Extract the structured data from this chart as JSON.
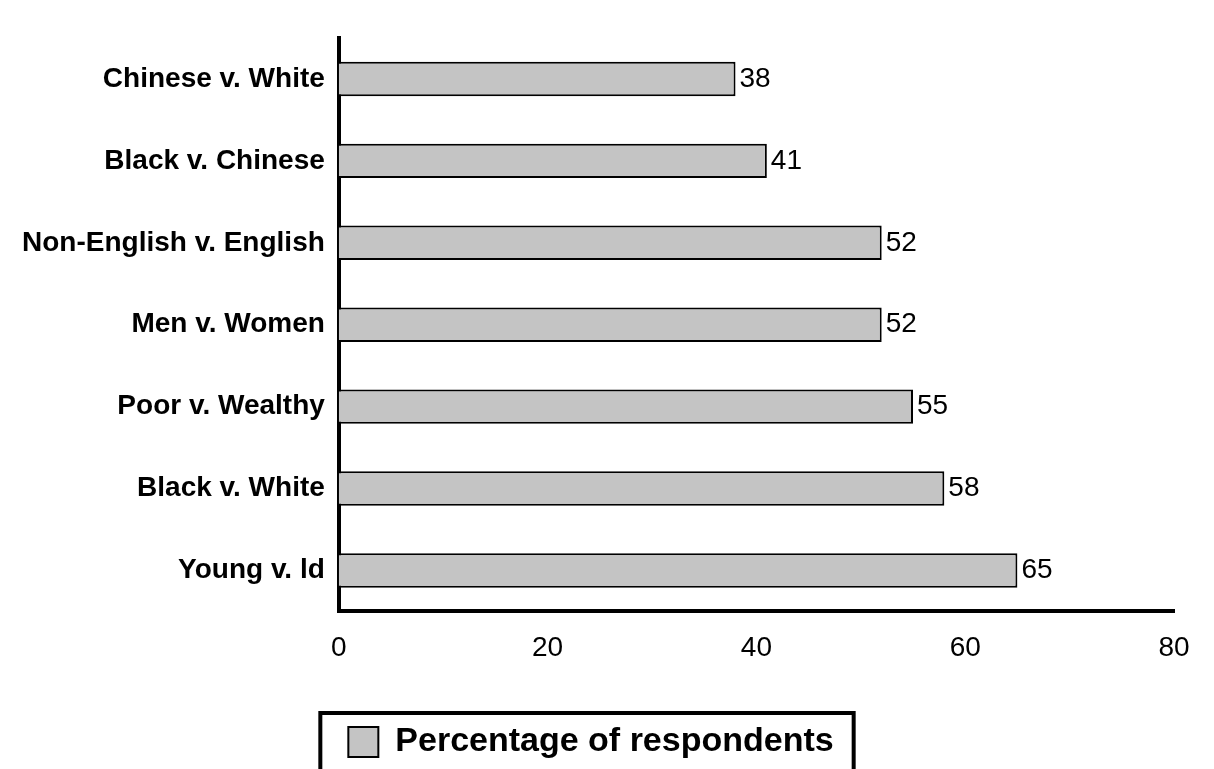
{
  "chart_data": {
    "type": "bar",
    "orientation": "horizontal",
    "categories": [
      "Chinese v. White",
      "Black v. Chinese",
      "Non-English v. English",
      "Men v. Women",
      "Poor v. Wealthy",
      "Black v. White",
      "Young v. ld"
    ],
    "series": [
      {
        "name": "Percentage of respondents",
        "color": "#c4c4c4",
        "values": [
          38,
          41,
          52,
          52,
          55,
          58,
          65
        ]
      }
    ],
    "xlim": [
      0,
      80
    ],
    "xticks": [
      0,
      20,
      40,
      60,
      80
    ],
    "grid": false,
    "legend": "bottom",
    "data_labels": true
  }
}
